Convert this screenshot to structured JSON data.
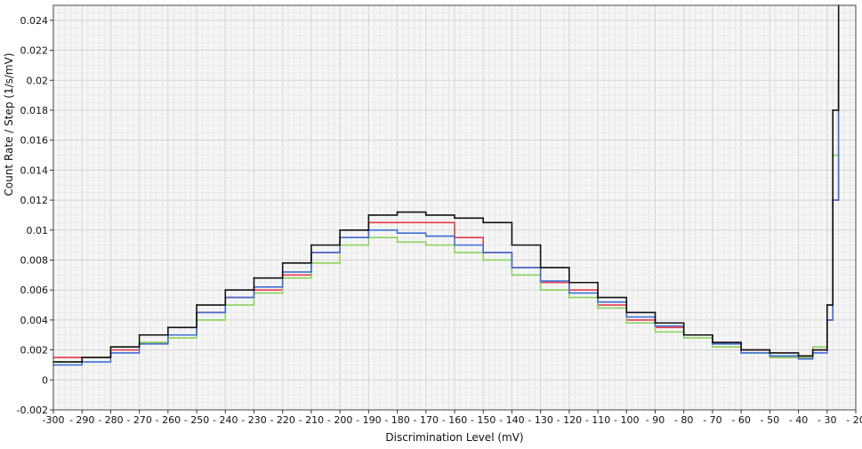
{
  "chart_data": {
    "type": "line",
    "title": "",
    "xlabel": "Discrimination Level (mV)",
    "ylabel": "Count Rate / Step (1/s/mV)",
    "xlim": [
      -300,
      -20
    ],
    "ylim": [
      -0.002,
      0.025
    ],
    "x_ticks": [
      -300,
      -290,
      -280,
      -270,
      -260,
      -250,
      -240,
      -230,
      -220,
      -210,
      -200,
      -190,
      -180,
      -170,
      -160,
      -150,
      -140,
      -130,
      -120,
      -110,
      -100,
      -90,
      -80,
      -70,
      -60,
      -50,
      -40,
      -30,
      -20
    ],
    "y_ticks": [
      -0.002,
      0,
      0.002,
      0.004,
      0.006,
      0.008,
      0.01,
      0.012,
      0.014,
      0.016,
      0.018,
      0.02,
      0.022,
      0.024
    ],
    "x_tick_labels": [
      "-300",
      "- 290",
      "- 280",
      "- 270",
      "- 260",
      "- 250",
      "- 240",
      "- 230",
      "- 220",
      "- 210",
      "- 200",
      "- 190",
      "- 180",
      "- 170",
      "- 160",
      "- 150",
      "- 140",
      "- 130",
      "- 120",
      "- 110",
      "- 100",
      "- 90",
      "- 80",
      "- 70",
      "- 60",
      "- 50",
      "- 40",
      "- 30",
      "- 20"
    ],
    "y_tick_labels": [
      "-0.002",
      "0",
      "0.002",
      "0.004",
      "0.006",
      "0.008",
      "0.01",
      "0.012",
      "0.014",
      "0.016",
      "0.018",
      "0.02",
      "0.022",
      "0.024"
    ],
    "grid": true,
    "x": [
      -300,
      -290,
      -280,
      -270,
      -260,
      -250,
      -240,
      -230,
      -220,
      -210,
      -200,
      -190,
      -180,
      -170,
      -160,
      -150,
      -140,
      -130,
      -120,
      -110,
      -100,
      -90,
      -80,
      -70,
      -60,
      -50,
      -40,
      -35,
      -30,
      -28,
      -26
    ],
    "series": [
      {
        "color": "#e8394a",
        "values": [
          0.0015,
          0.0015,
          0.002,
          0.0025,
          0.003,
          0.0045,
          0.0055,
          0.006,
          0.007,
          0.0085,
          0.0095,
          0.0105,
          0.0105,
          0.0105,
          0.0095,
          0.0085,
          0.0075,
          0.0065,
          0.006,
          0.005,
          0.004,
          0.0035,
          0.003,
          0.0025,
          0.002,
          0.0015,
          0.0015,
          0.002,
          0.004,
          0.012,
          0.02
        ]
      },
      {
        "color": "#8ad15a",
        "values": [
          0.0012,
          0.0015,
          0.0022,
          0.0025,
          0.0028,
          0.004,
          0.005,
          0.0058,
          0.0068,
          0.0078,
          0.009,
          0.0095,
          0.0092,
          0.009,
          0.0085,
          0.008,
          0.007,
          0.006,
          0.0055,
          0.0048,
          0.0038,
          0.0032,
          0.0028,
          0.0022,
          0.0018,
          0.0015,
          0.0015,
          0.0022,
          0.005,
          0.015,
          0.021
        ]
      },
      {
        "color": "#3f6fd6",
        "values": [
          0.001,
          0.0012,
          0.0018,
          0.0024,
          0.003,
          0.0045,
          0.0055,
          0.0062,
          0.0072,
          0.0085,
          0.0095,
          0.01,
          0.0098,
          0.0096,
          0.009,
          0.0085,
          0.0075,
          0.0066,
          0.0058,
          0.0052,
          0.0042,
          0.0036,
          0.003,
          0.0024,
          0.0018,
          0.0016,
          0.0014,
          0.0018,
          0.004,
          0.012,
          0.02
        ]
      },
      {
        "color": "#111111",
        "values": [
          0.0012,
          0.0015,
          0.0022,
          0.003,
          0.0035,
          0.005,
          0.006,
          0.0068,
          0.0078,
          0.009,
          0.01,
          0.011,
          0.0112,
          0.011,
          0.0108,
          0.0105,
          0.009,
          0.0075,
          0.0065,
          0.0055,
          0.0045,
          0.0038,
          0.003,
          0.0025,
          0.002,
          0.0018,
          0.0016,
          0.002,
          0.005,
          0.018,
          0.025
        ]
      }
    ]
  }
}
